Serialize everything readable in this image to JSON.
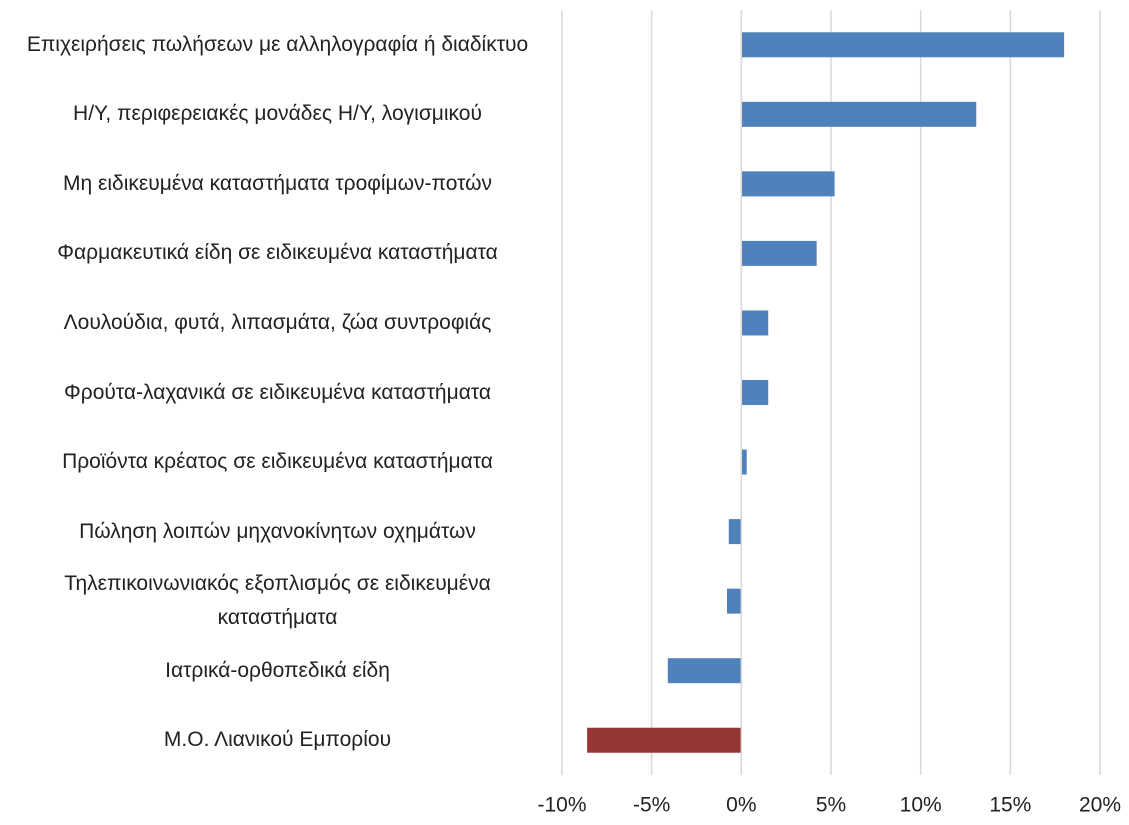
{
  "chart_data": {
    "type": "hbar",
    "categories": [
      "Επιχειρήσεις πωλήσεων με αλληλογραφία ή διαδίκτυο",
      "Η/Υ, περιφερειακές μονάδες Η/Υ, λογισμικού",
      "Μη ειδικευμένα καταστήματα τροφίμων-ποτών",
      "Φαρμακευτικά είδη σε ειδικευμένα καταστήματα",
      "Λουλούδια, φυτά, λιπασμάτα, ζώα συντροφιάς",
      "Φρούτα-λαχανικά σε ειδικευμένα καταστήματα",
      "Προϊόντα κρέατος σε ειδικευμένα καταστήματα",
      "Πώληση λοιπών μηχανοκίνητων οχημάτων",
      "Τηλεπικοινωνιακός εξοπλισμός σε ειδικευμένα καταστήματα",
      "Ιατρικά-ορθοπεδικά είδη",
      "Μ.Ο. Λιανικού Εμπορίου"
    ],
    "values": [
      18.0,
      13.1,
      5.2,
      4.2,
      1.5,
      1.5,
      0.3,
      -0.7,
      -0.8,
      -4.1,
      -8.6
    ],
    "colors": [
      "#4f81bd",
      "#4f81bd",
      "#4f81bd",
      "#4f81bd",
      "#4f81bd",
      "#4f81bd",
      "#4f81bd",
      "#4f81bd",
      "#4f81bd",
      "#4f81bd",
      "#943634"
    ],
    "xlim": [
      -10,
      20
    ],
    "xticks": [
      {
        "value": -10,
        "label": "-10%"
      },
      {
        "value": -5,
        "label": "-5%"
      },
      {
        "value": 0,
        "label": "0%"
      },
      {
        "value": 5,
        "label": "5%"
      },
      {
        "value": 10,
        "label": "10%"
      },
      {
        "value": 15,
        "label": "15%"
      },
      {
        "value": 20,
        "label": "20%"
      }
    ],
    "grid": true
  }
}
